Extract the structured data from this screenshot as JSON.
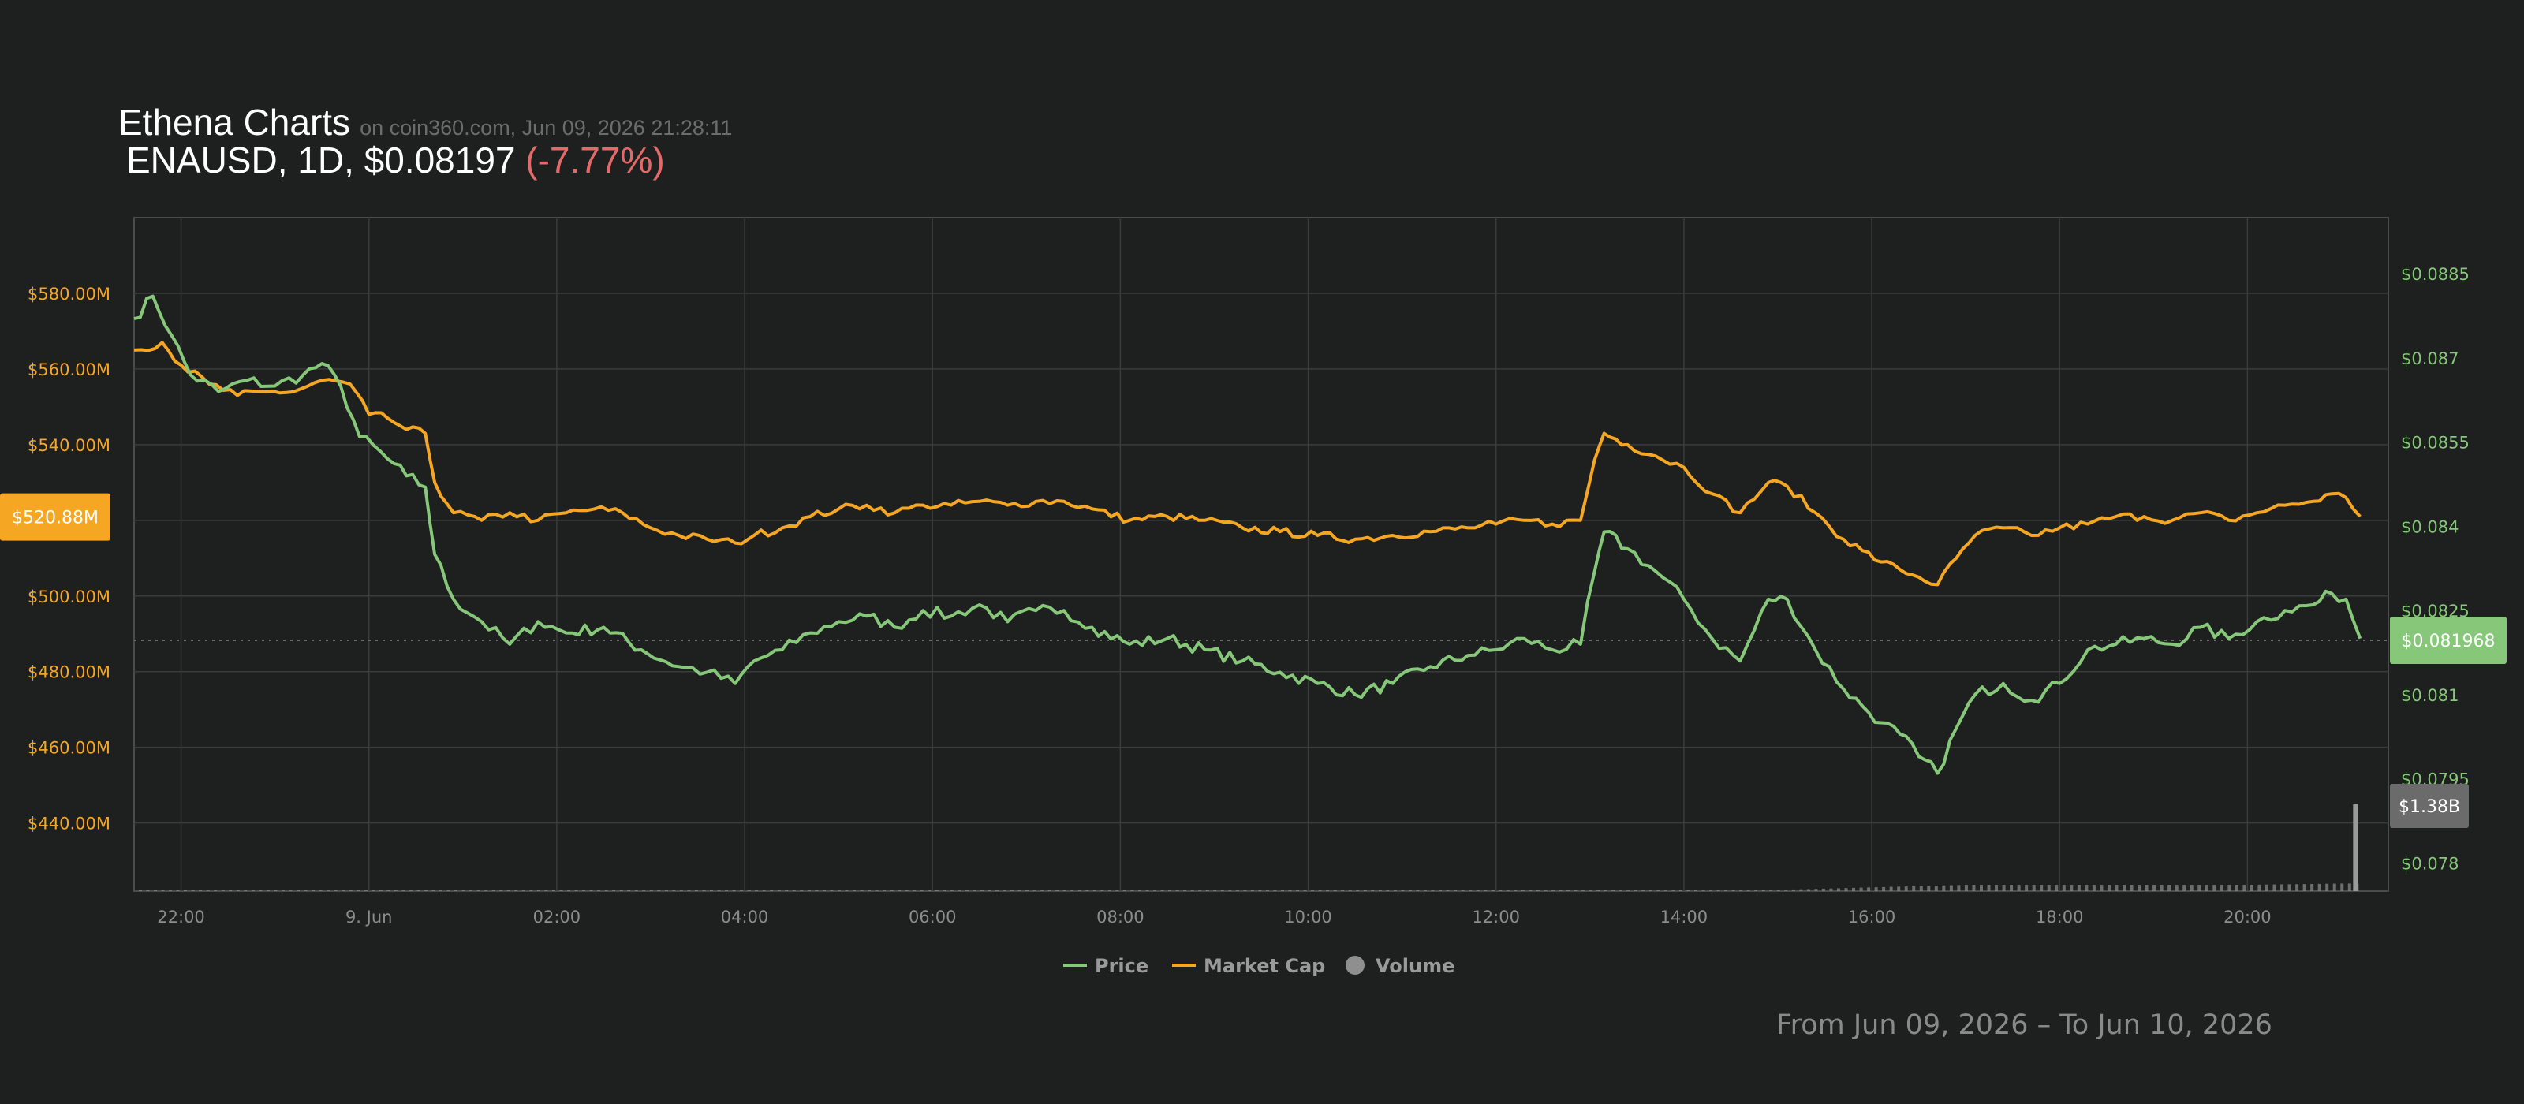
{
  "header": {
    "title": "Ethena Charts",
    "source": "on coin360.com, Jun 09, 2026 21:28:11",
    "ticker": "ENAUSD, 1D, $0.08197",
    "change": "(-7.77%)"
  },
  "date_range": "From Jun 09, 2026 – To Jun 10, 2026",
  "colors": {
    "price": "#86c77a",
    "market_cap": "#f5a623",
    "volume": "#8f8f8f",
    "background": "#1e1f1f",
    "grid": "#3a3b3b"
  },
  "chart_data": {
    "type": "line",
    "x_ticks": [
      "22:00",
      "9. Jun",
      "02:00",
      "04:00",
      "06:00",
      "08:00",
      "10:00",
      "12:00",
      "14:00",
      "16:00",
      "18:00",
      "20:00"
    ],
    "x_tick_hours": [
      22,
      24,
      26,
      28,
      30,
      32,
      34,
      36,
      38,
      40,
      42,
      44
    ],
    "x_range_hours": [
      21.5,
      45.5
    ],
    "y_left": {
      "ticks": [
        "$440.00M",
        "$460.00M",
        "$480.00M",
        "$500.00M",
        "$520.00M",
        "$540.00M",
        "$560.00M",
        "$580.00M"
      ],
      "tick_values": [
        440,
        460,
        480,
        500,
        520,
        540,
        560,
        580
      ],
      "range_millions": [
        422,
        600
      ]
    },
    "y_right": {
      "ticks": [
        "$0.078",
        "$0.0795",
        "$0.081",
        "$0.0825",
        "$0.084",
        "$0.0855",
        "$0.087",
        "$0.0885"
      ],
      "tick_values": [
        0.078,
        0.0795,
        0.081,
        0.0825,
        0.084,
        0.0855,
        0.087,
        0.0885
      ],
      "range": [
        0.0775,
        0.0895
      ]
    },
    "legend": [
      {
        "name": "Price",
        "key": "price"
      },
      {
        "name": "Market Cap",
        "key": "market_cap"
      },
      {
        "name": "Volume",
        "key": "volume"
      }
    ],
    "badges": {
      "market_cap": "$520.88M",
      "price": "$0.081968",
      "volume": "$1.38B"
    },
    "last_price": 0.081968,
    "last_market_cap_millions": 520.88,
    "price_keypoints": [
      [
        21.5,
        0.0877
      ],
      [
        21.7,
        0.0881
      ],
      [
        21.9,
        0.0874
      ],
      [
        22.1,
        0.0867
      ],
      [
        22.4,
        0.0864
      ],
      [
        22.7,
        0.0866
      ],
      [
        23.0,
        0.0865
      ],
      [
        23.3,
        0.0867
      ],
      [
        23.5,
        0.0869
      ],
      [
        23.7,
        0.0865
      ],
      [
        23.9,
        0.0856
      ],
      [
        24.2,
        0.0852
      ],
      [
        24.4,
        0.0849
      ],
      [
        24.6,
        0.0847
      ],
      [
        24.7,
        0.0835
      ],
      [
        24.9,
        0.0827
      ],
      [
        25.2,
        0.0823
      ],
      [
        25.5,
        0.0819
      ],
      [
        25.8,
        0.0823
      ],
      [
        26.1,
        0.0821
      ],
      [
        26.5,
        0.0822
      ],
      [
        26.9,
        0.0818
      ],
      [
        27.3,
        0.0815
      ],
      [
        27.6,
        0.0814
      ],
      [
        27.9,
        0.0812
      ],
      [
        28.1,
        0.0816
      ],
      [
        28.4,
        0.0818
      ],
      [
        28.7,
        0.0821
      ],
      [
        29.0,
        0.0823
      ],
      [
        29.3,
        0.0824
      ],
      [
        29.6,
        0.0822
      ],
      [
        29.9,
        0.0825
      ],
      [
        30.2,
        0.0824
      ],
      [
        30.5,
        0.0826
      ],
      [
        30.8,
        0.0823
      ],
      [
        31.1,
        0.0825
      ],
      [
        31.4,
        0.0825
      ],
      [
        31.7,
        0.0822
      ],
      [
        32.1,
        0.0819
      ],
      [
        32.5,
        0.082
      ],
      [
        32.9,
        0.0818
      ],
      [
        33.3,
        0.0816
      ],
      [
        33.7,
        0.0814
      ],
      [
        34.1,
        0.0812
      ],
      [
        34.5,
        0.081
      ],
      [
        34.9,
        0.0812
      ],
      [
        35.3,
        0.0815
      ],
      [
        35.7,
        0.0817
      ],
      [
        36.0,
        0.0818
      ],
      [
        36.3,
        0.082
      ],
      [
        36.6,
        0.0818
      ],
      [
        36.9,
        0.0819
      ],
      [
        37.05,
        0.0832
      ],
      [
        37.15,
        0.0839
      ],
      [
        37.4,
        0.0836
      ],
      [
        37.7,
        0.0832
      ],
      [
        38.0,
        0.0827
      ],
      [
        38.3,
        0.082
      ],
      [
        38.6,
        0.0816
      ],
      [
        38.9,
        0.0827
      ],
      [
        39.1,
        0.0827
      ],
      [
        39.4,
        0.0818
      ],
      [
        39.7,
        0.0811
      ],
      [
        39.9,
        0.0808
      ],
      [
        40.1,
        0.0805
      ],
      [
        40.3,
        0.0803
      ],
      [
        40.5,
        0.0799
      ],
      [
        40.7,
        0.0796
      ],
      [
        40.9,
        0.0804
      ],
      [
        41.1,
        0.081
      ],
      [
        41.4,
        0.0812
      ],
      [
        41.7,
        0.0809
      ],
      [
        42.0,
        0.0812
      ],
      [
        42.3,
        0.0818
      ],
      [
        42.6,
        0.0819
      ],
      [
        42.9,
        0.082
      ],
      [
        43.2,
        0.0819
      ],
      [
        43.5,
        0.0822
      ],
      [
        43.8,
        0.082
      ],
      [
        44.1,
        0.0823
      ],
      [
        44.4,
        0.0825
      ],
      [
        44.7,
        0.0826
      ],
      [
        44.9,
        0.0828
      ],
      [
        45.05,
        0.0827
      ],
      [
        45.2,
        0.082
      ]
    ],
    "market_cap_keypoints": [
      [
        21.5,
        565
      ],
      [
        21.8,
        567
      ],
      [
        22.0,
        561
      ],
      [
        22.3,
        556
      ],
      [
        22.6,
        553
      ],
      [
        22.9,
        554
      ],
      [
        23.2,
        554
      ],
      [
        23.5,
        557
      ],
      [
        23.8,
        556
      ],
      [
        24.0,
        548
      ],
      [
        24.2,
        547
      ],
      [
        24.4,
        544
      ],
      [
        24.6,
        543
      ],
      [
        24.7,
        530
      ],
      [
        24.9,
        522
      ],
      [
        25.2,
        520
      ],
      [
        25.5,
        522
      ],
      [
        25.8,
        520
      ],
      [
        26.1,
        522
      ],
      [
        26.4,
        523
      ],
      [
        26.7,
        522
      ],
      [
        27.0,
        518
      ],
      [
        27.3,
        516
      ],
      [
        27.6,
        515
      ],
      [
        27.9,
        514
      ],
      [
        28.1,
        516
      ],
      [
        28.4,
        518
      ],
      [
        28.7,
        521
      ],
      [
        29.0,
        523
      ],
      [
        29.3,
        524
      ],
      [
        29.6,
        522
      ],
      [
        29.9,
        524
      ],
      [
        30.2,
        524
      ],
      [
        30.5,
        525
      ],
      [
        30.8,
        524
      ],
      [
        31.1,
        525
      ],
      [
        31.4,
        525
      ],
      [
        31.7,
        523
      ],
      [
        32.1,
        520
      ],
      [
        32.5,
        521
      ],
      [
        32.9,
        520
      ],
      [
        33.3,
        518
      ],
      [
        33.7,
        517
      ],
      [
        34.1,
        516
      ],
      [
        34.5,
        515
      ],
      [
        34.9,
        516
      ],
      [
        35.3,
        517
      ],
      [
        35.7,
        518
      ],
      [
        36.0,
        519
      ],
      [
        36.3,
        520
      ],
      [
        36.6,
        519
      ],
      [
        36.9,
        520
      ],
      [
        37.05,
        536
      ],
      [
        37.15,
        543
      ],
      [
        37.4,
        540
      ],
      [
        37.7,
        537
      ],
      [
        38.0,
        534
      ],
      [
        38.3,
        527
      ],
      [
        38.6,
        522
      ],
      [
        38.9,
        530
      ],
      [
        39.1,
        529
      ],
      [
        39.4,
        522
      ],
      [
        39.7,
        515
      ],
      [
        39.9,
        512
      ],
      [
        40.1,
        509
      ],
      [
        40.3,
        507
      ],
      [
        40.5,
        505
      ],
      [
        40.7,
        503
      ],
      [
        40.9,
        510
      ],
      [
        41.1,
        516
      ],
      [
        41.4,
        518
      ],
      [
        41.7,
        516
      ],
      [
        42.0,
        518
      ],
      [
        42.3,
        519
      ],
      [
        42.6,
        521
      ],
      [
        42.9,
        521
      ],
      [
        43.2,
        520
      ],
      [
        43.5,
        522
      ],
      [
        43.8,
        520
      ],
      [
        44.1,
        522
      ],
      [
        44.4,
        524
      ],
      [
        44.7,
        525
      ],
      [
        44.9,
        527
      ],
      [
        45.05,
        526
      ],
      [
        45.2,
        521
      ]
    ],
    "volume_keypoints": [
      [
        21.5,
        0.02
      ],
      [
        30.0,
        0.02
      ],
      [
        39.0,
        0.02
      ],
      [
        40.5,
        0.08
      ],
      [
        41.0,
        0.1
      ],
      [
        44.0,
        0.1
      ],
      [
        45.0,
        0.12
      ],
      [
        45.15,
        1.38
      ]
    ]
  }
}
